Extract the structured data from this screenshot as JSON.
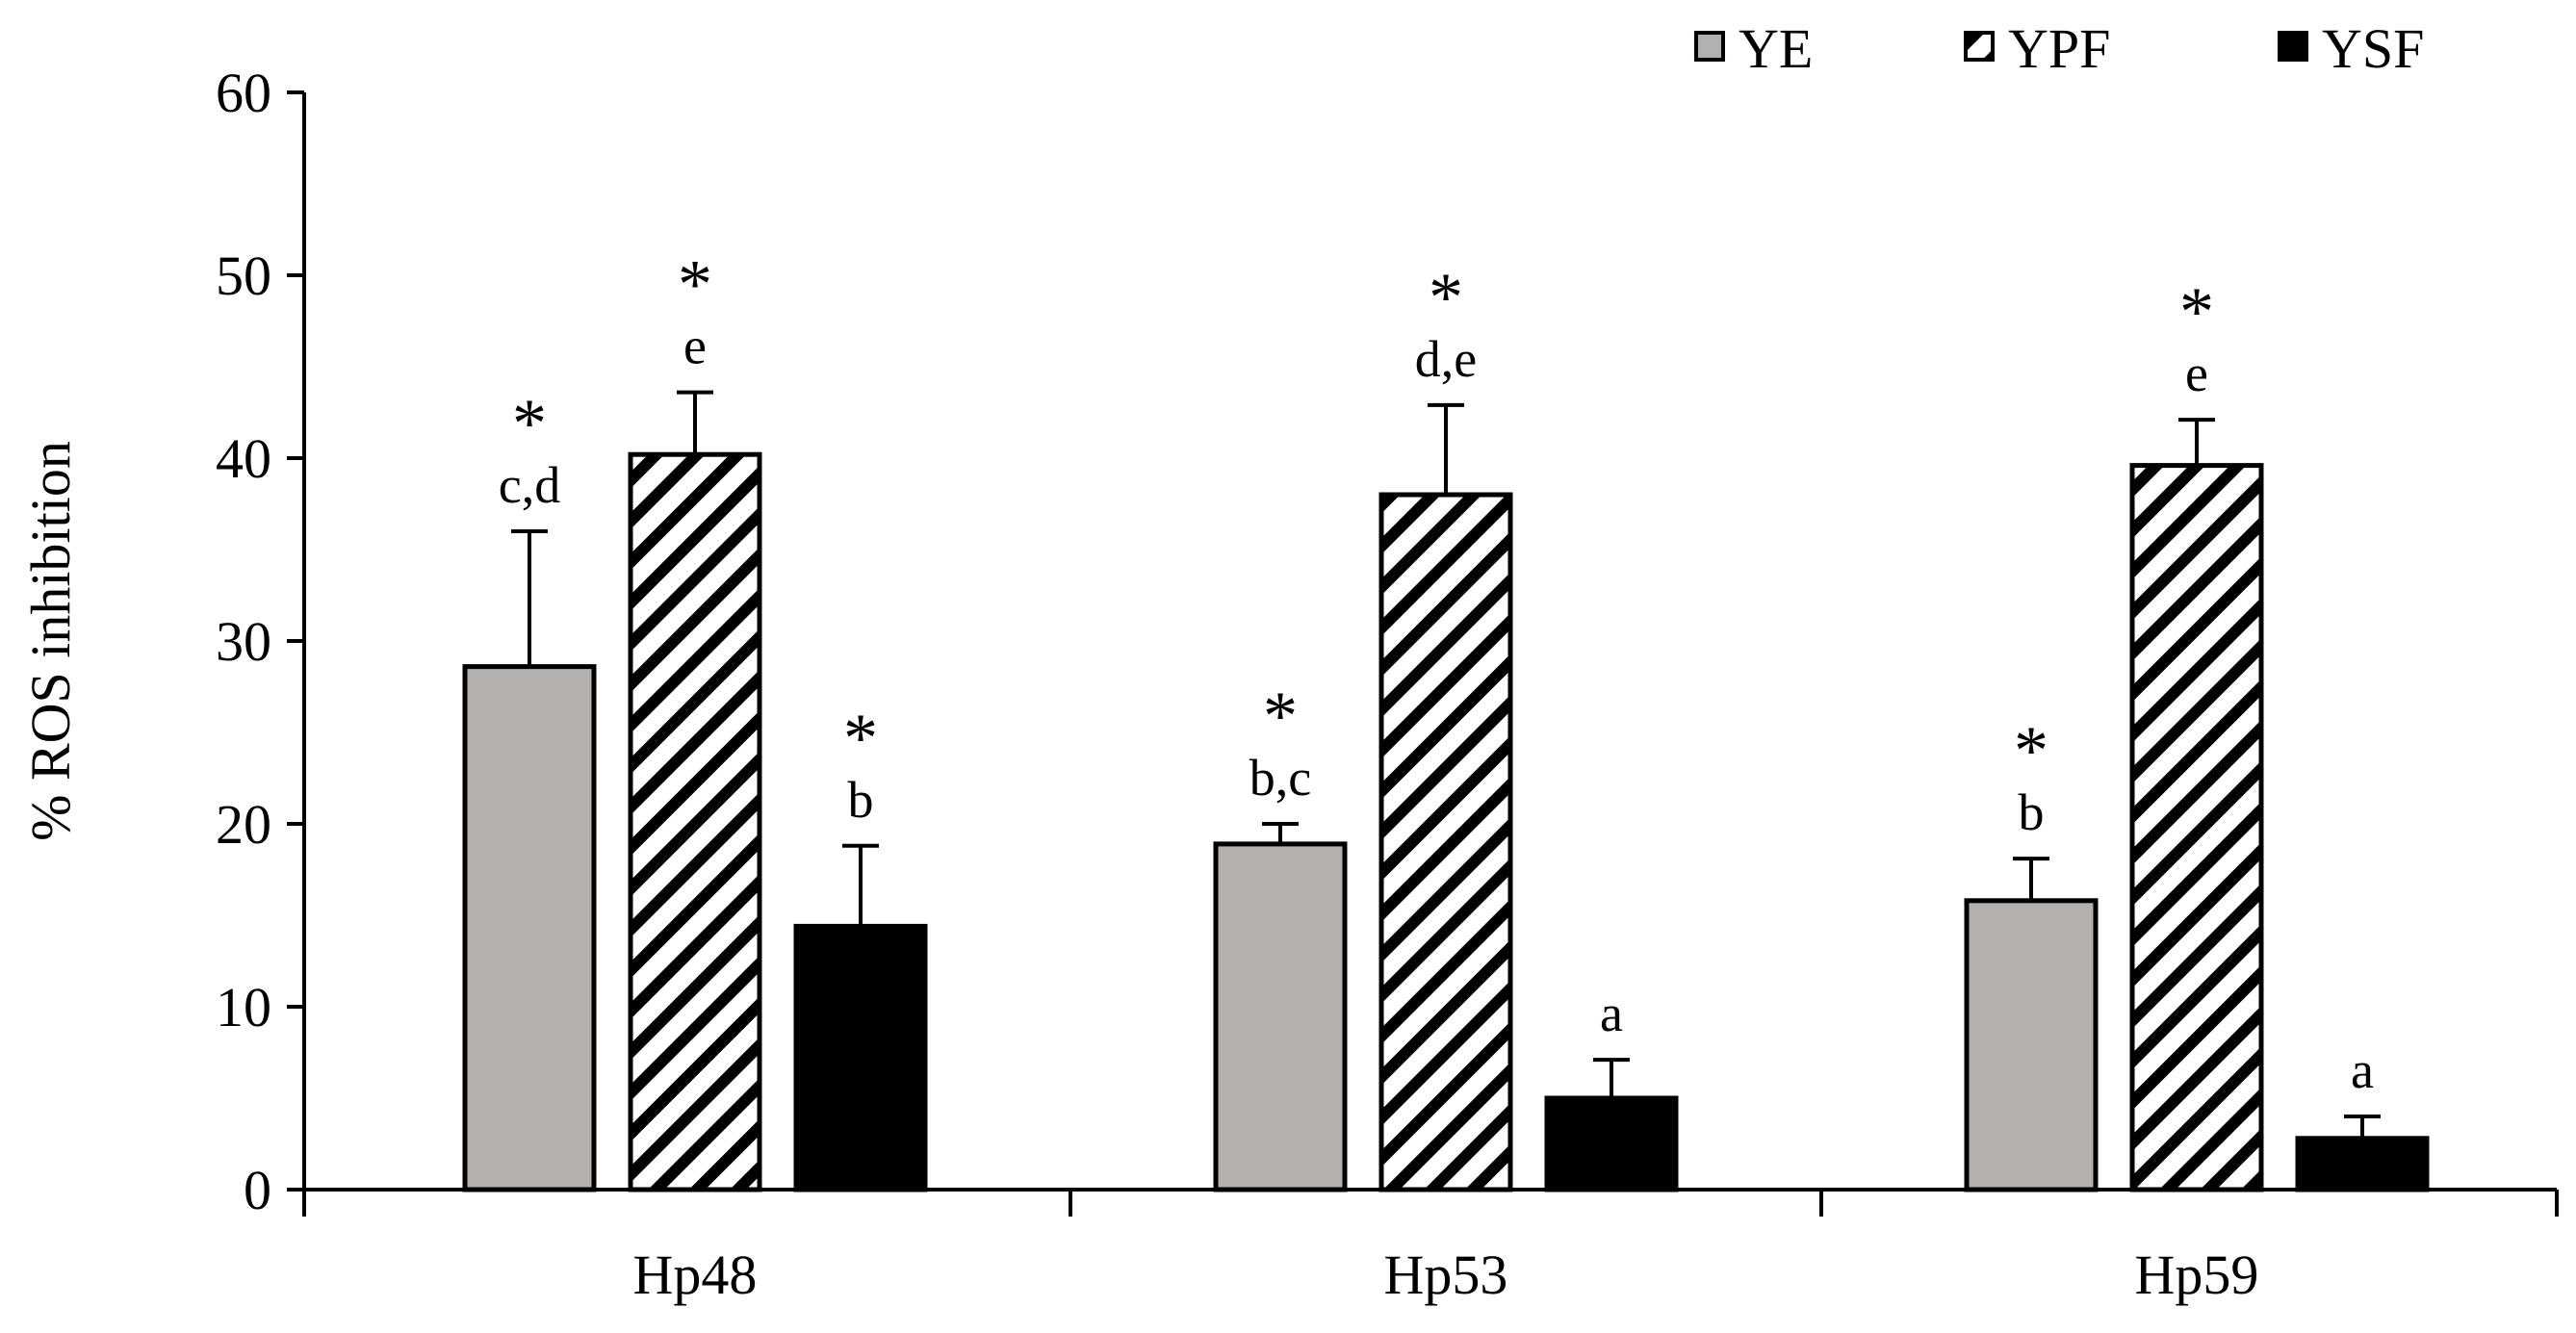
{
  "chart_data": {
    "type": "bar",
    "title": "",
    "xlabel": "",
    "ylabel": "% ROS inhibition",
    "ylim": [
      0,
      60
    ],
    "yticks": [
      0,
      10,
      20,
      30,
      40,
      50,
      60
    ],
    "grid": false,
    "legend_position": "top-right",
    "categories": [
      "Hp48",
      "Hp53",
      "Hp59"
    ],
    "series": [
      {
        "name": "YE",
        "fill": "#b3b0ae",
        "pattern": "solid",
        "values": [
          28.6,
          18.9,
          15.8
        ],
        "errors": [
          7.4,
          1.1,
          2.3
        ],
        "letters": [
          "c,d",
          "b,c",
          "b"
        ],
        "stars": [
          "*",
          "*",
          "*"
        ]
      },
      {
        "name": "YPF",
        "fill": "#ffffff",
        "pattern": "diagonal-stripes",
        "values": [
          40.2,
          38.0,
          39.6
        ],
        "errors": [
          3.4,
          4.9,
          2.5
        ],
        "letters": [
          "e",
          "d,e",
          "e"
        ],
        "stars": [
          "*",
          "*",
          "*"
        ]
      },
      {
        "name": "YSF",
        "fill": "#000000",
        "pattern": "solid",
        "values": [
          14.4,
          5.0,
          2.8
        ],
        "errors": [
          4.4,
          2.1,
          1.2
        ],
        "letters": [
          "b",
          "a",
          "a"
        ],
        "stars": [
          "*",
          "",
          ""
        ]
      }
    ]
  }
}
